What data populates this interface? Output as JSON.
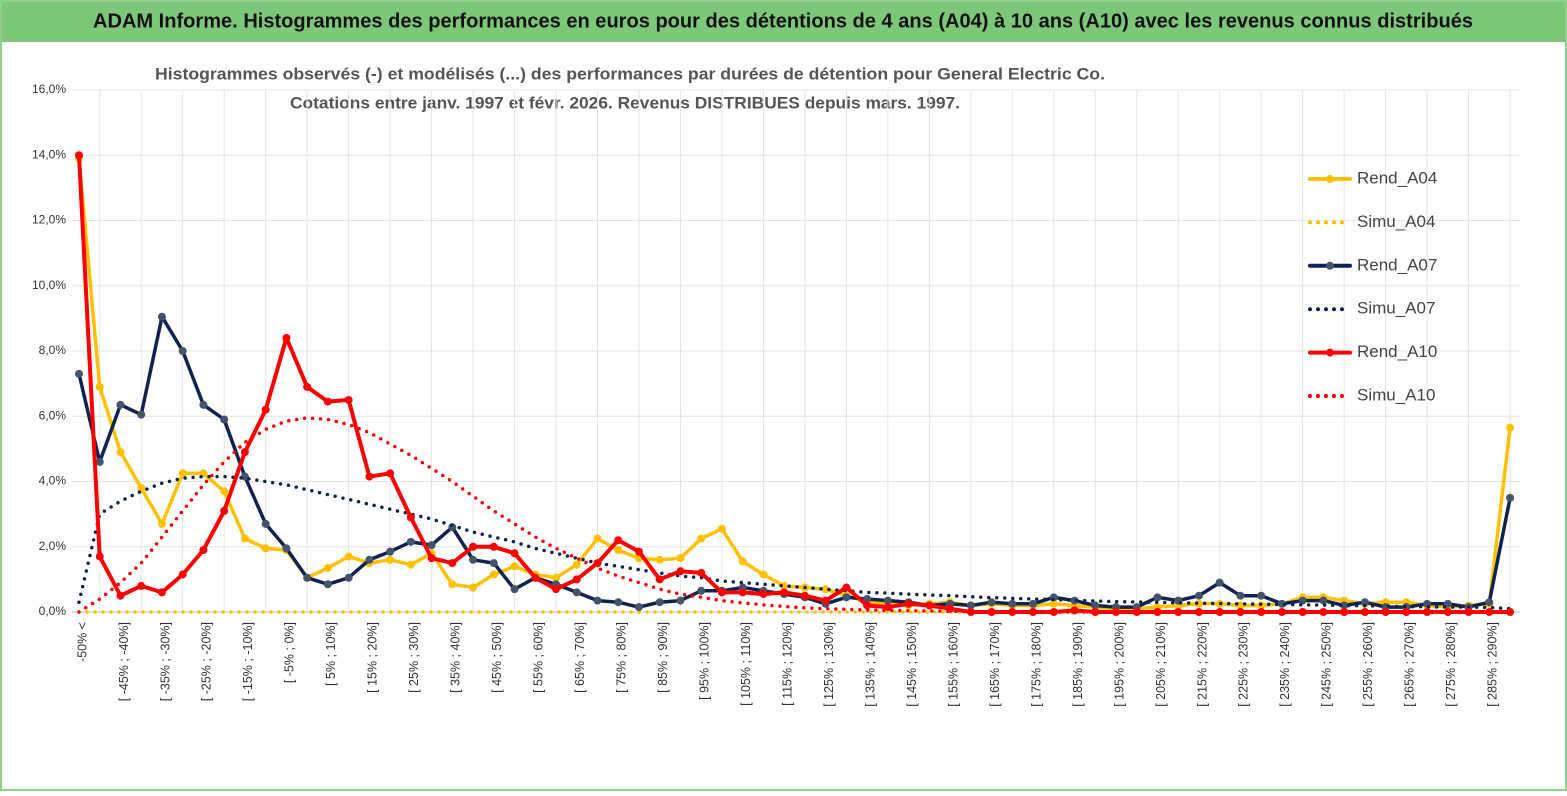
{
  "header": {
    "title": "ADAM Informe. Histogrammes des performances en euros pour des détentions de 4 ans (A04) à 10 ans (A10) avec les revenus connus distribués"
  },
  "chart_data": {
    "type": "line",
    "title": "Histogrammes observés (-) et modélisés (...)  des performances par durées de détention pour General Electric Co.",
    "subtitle": "Cotations entre janv. 1997 et févr. 2026. Revenus DISTRIBUES depuis mars. 1997.",
    "categories": [
      "-50% <",
      null,
      "[ -45% ; -40%]",
      null,
      "[ -35% ; -30%]",
      null,
      "[ -25% ; -20%]",
      null,
      "[ -15% ; -10%]",
      null,
      "[ -5% ; 0%]",
      null,
      "[ 5% ; 10%]",
      null,
      "[ 15% ; 20%]",
      null,
      "[ 25% ; 30%]",
      null,
      "[ 35% ; 40%]",
      null,
      "[ 45% ; 50%]",
      null,
      "[ 55% ; 60%]",
      null,
      "[ 65% ; 70%]",
      null,
      "[ 75% ; 80%]",
      null,
      "[ 85% ; 90%]",
      null,
      "[ 95% ; 100%]",
      null,
      "[ 105% ; 110%]",
      null,
      "[ 115% ; 120%]",
      null,
      "[ 125% ; 130%]",
      null,
      "[ 135% ; 140%]",
      null,
      "[ 145% ; 150%]",
      null,
      "[ 155% ; 160%]",
      null,
      "[ 165% ; 170%]",
      null,
      "[ 175% ; 180%]",
      null,
      "[ 185% ; 190%]",
      null,
      "[ 195% ; 200%]",
      null,
      "[ 205% ; 210%]",
      null,
      "[ 215% ; 220%]",
      null,
      "[ 225% ; 230%]",
      null,
      "[ 235% ; 240%]",
      null,
      "[ 245% ; 250%]",
      null,
      "[ 255% ; 260%]",
      null,
      "[ 265% ; 270%]",
      null,
      "[ 275% ; 280%]",
      null,
      "[ 285% ; 290%]",
      null
    ],
    "series": [
      {
        "name": "Rend_A04",
        "color": "#FFC000",
        "style": "solid",
        "values": [
          13.9,
          6.9,
          4.9,
          3.8,
          2.7,
          4.25,
          4.25,
          3.7,
          2.25,
          1.95,
          1.9,
          1.05,
          1.35,
          1.7,
          1.5,
          1.6,
          1.45,
          1.8,
          0.85,
          0.75,
          1.15,
          1.4,
          1.15,
          1.05,
          1.45,
          2.25,
          1.9,
          1.65,
          1.6,
          1.65,
          2.25,
          2.55,
          1.55,
          1.15,
          0.8,
          0.75,
          0.7,
          0.5,
          0.3,
          0.25,
          0.2,
          0.25,
          0.3,
          0.2,
          0.25,
          0.2,
          0.2,
          0.25,
          0.2,
          0.15,
          0.1,
          0.1,
          0.15,
          0.2,
          0.25,
          0.25,
          0.2,
          0.2,
          0.25,
          0.45,
          0.45,
          0.35,
          0.25,
          0.3,
          0.3,
          0.2,
          0.15,
          0.2,
          0.25,
          5.65
        ]
      },
      {
        "name": "Simu_A04",
        "color": "#FFC000",
        "style": "dotted",
        "values": [
          0,
          0,
          0,
          0,
          0,
          0,
          0,
          0,
          0,
          0,
          0,
          0,
          0,
          0,
          0,
          0,
          0,
          0,
          0,
          0,
          0,
          0,
          0,
          0,
          0,
          0,
          0,
          0,
          0,
          0,
          0,
          0,
          0,
          0,
          0,
          0,
          0,
          0,
          0,
          0,
          0,
          0,
          0,
          0,
          0,
          0,
          0,
          0,
          0,
          0,
          0,
          0,
          0,
          0,
          0,
          0,
          0,
          0,
          0,
          0,
          0,
          0,
          0,
          0,
          0,
          0,
          0,
          0,
          0,
          0
        ]
      },
      {
        "name": "Rend_A07",
        "color": "#0F2350",
        "style": "solid",
        "values": [
          7.3,
          4.6,
          6.35,
          6.05,
          9.05,
          8.0,
          6.35,
          5.9,
          4.15,
          2.7,
          1.95,
          1.05,
          0.85,
          1.05,
          1.6,
          1.85,
          2.15,
          2.05,
          2.6,
          1.6,
          1.5,
          0.7,
          1.05,
          0.85,
          0.6,
          0.35,
          0.3,
          0.15,
          0.3,
          0.35,
          0.65,
          0.65,
          0.75,
          0.65,
          0.55,
          0.45,
          0.25,
          0.45,
          0.4,
          0.35,
          0.3,
          0.2,
          0.25,
          0.2,
          0.3,
          0.25,
          0.25,
          0.45,
          0.35,
          0.2,
          0.15,
          0.15,
          0.45,
          0.35,
          0.5,
          0.9,
          0.5,
          0.5,
          0.25,
          0.35,
          0.35,
          0.2,
          0.3,
          0.15,
          0.15,
          0.25,
          0.25,
          0.15,
          0.3,
          3.5
        ]
      },
      {
        "name": "Simu_A07",
        "color": "#0F2350",
        "style": "dotted",
        "values": [
          0.3,
          3.0,
          3.4,
          3.7,
          3.95,
          4.1,
          4.15,
          4.15,
          4.1,
          4.0,
          3.9,
          3.75,
          3.6,
          3.45,
          3.3,
          3.15,
          3.0,
          2.85,
          2.65,
          2.45,
          2.3,
          2.15,
          1.95,
          1.8,
          1.65,
          1.5,
          1.4,
          1.3,
          1.2,
          1.1,
          1.05,
          0.95,
          0.9,
          0.85,
          0.8,
          0.75,
          0.7,
          0.65,
          0.6,
          0.58,
          0.55,
          0.52,
          0.5,
          0.47,
          0.44,
          0.42,
          0.4,
          0.38,
          0.36,
          0.34,
          0.32,
          0.31,
          0.3,
          0.28,
          0.27,
          0.26,
          0.25,
          0.24,
          0.23,
          0.22,
          0.21,
          0.2,
          0.19,
          0.18,
          0.17,
          0.16,
          0.15,
          0.15,
          0.14,
          0.1
        ]
      },
      {
        "name": "Rend_A10",
        "color": "#FF0000",
        "style": "solid",
        "values": [
          14.0,
          1.7,
          0.5,
          0.8,
          0.6,
          1.15,
          1.9,
          3.1,
          4.9,
          6.2,
          8.4,
          6.9,
          6.45,
          6.5,
          4.15,
          4.25,
          2.9,
          1.65,
          1.5,
          2.0,
          2.0,
          1.8,
          1.05,
          0.7,
          1.0,
          1.5,
          2.2,
          1.85,
          1.0,
          1.25,
          1.2,
          0.6,
          0.6,
          0.55,
          0.6,
          0.5,
          0.35,
          0.75,
          0.2,
          0.15,
          0.25,
          0.2,
          0.1,
          0,
          0,
          0,
          0,
          0,
          0.05,
          0,
          0,
          0,
          0,
          0,
          0,
          0,
          0,
          0,
          0,
          0,
          0,
          0,
          0,
          0,
          0,
          0,
          0,
          0,
          0,
          0
        ]
      },
      {
        "name": "Simu_A10",
        "color": "#FF0000",
        "style": "dotted",
        "values": [
          0,
          0.4,
          0.9,
          1.5,
          2.3,
          3.1,
          3.9,
          4.6,
          5.2,
          5.6,
          5.85,
          5.95,
          5.9,
          5.75,
          5.5,
          5.15,
          4.8,
          4.4,
          4.0,
          3.55,
          3.1,
          2.7,
          2.3,
          1.95,
          1.65,
          1.35,
          1.1,
          0.9,
          0.7,
          0.55,
          0.45,
          0.35,
          0.28,
          0.22,
          0.17,
          0.13,
          0.1,
          0.08,
          0.06,
          0.05,
          0.04,
          0.03,
          0.02,
          0.01,
          0.01,
          0,
          0,
          0,
          0,
          0,
          0,
          0,
          0,
          0,
          0,
          0,
          0,
          0,
          0,
          0,
          0,
          0,
          0,
          0,
          0,
          0,
          0,
          0,
          0,
          0
        ]
      }
    ],
    "ylim": [
      0,
      16
    ],
    "yticks": [
      {
        "value": 0,
        "label": "0,0%"
      },
      {
        "value": 2,
        "label": "2,0%"
      },
      {
        "value": 4,
        "label": "4,0%"
      },
      {
        "value": 6,
        "label": "6,0%"
      },
      {
        "value": 8,
        "label": "8,0%"
      },
      {
        "value": 10,
        "label": "10,0%"
      },
      {
        "value": 12,
        "label": "12,0%"
      },
      {
        "value": 14,
        "label": "14,0%"
      },
      {
        "value": 16,
        "label": "16,0%"
      }
    ],
    "grid": true,
    "legend": "right"
  }
}
